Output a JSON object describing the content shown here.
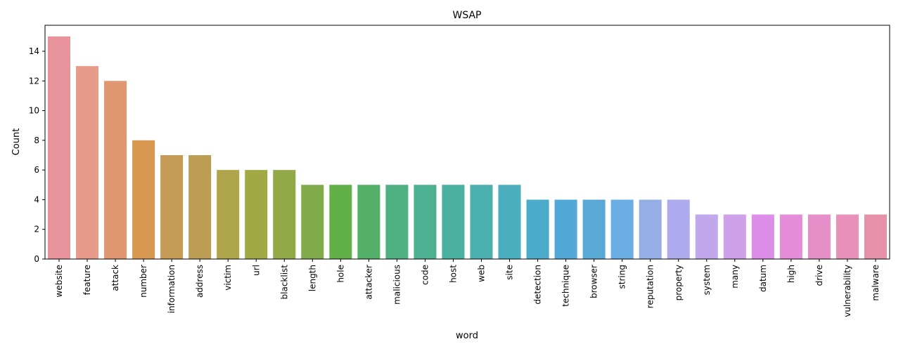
{
  "chart_data": {
    "type": "bar",
    "title": "WSAP",
    "xlabel": "word",
    "ylabel": "Count",
    "ylim": [
      0,
      15.75
    ],
    "yticks": [
      0,
      2,
      4,
      6,
      8,
      10,
      12,
      14
    ],
    "grid": false,
    "categories": [
      "website",
      "feature",
      "attack",
      "number",
      "information",
      "address",
      "victim",
      "url",
      "blacklist",
      "length",
      "hole",
      "attacker",
      "malicious",
      "code",
      "host",
      "web",
      "site",
      "detection",
      "technique",
      "browser",
      "string",
      "reputation",
      "property",
      "system",
      "many",
      "datum",
      "high",
      "drive",
      "vulnerability",
      "malware"
    ],
    "values": [
      15,
      13,
      12,
      8,
      7,
      7,
      6,
      6,
      6,
      5,
      5,
      5,
      5,
      5,
      5,
      5,
      5,
      4,
      4,
      4,
      4,
      4,
      4,
      3,
      3,
      3,
      3,
      3,
      3,
      3
    ],
    "colors": [
      "#e8929b",
      "#e89a8b",
      "#e09670",
      "#d99851",
      "#c69b55",
      "#bc9d53",
      "#aea54a",
      "#a1a946",
      "#93a846",
      "#81ab4a",
      "#62b048",
      "#55b16a",
      "#4fb182",
      "#4db191",
      "#4bb09f",
      "#4aafae",
      "#4aaebd",
      "#4cabcb",
      "#52a8d6",
      "#58a9d6",
      "#6aaee5",
      "#96aee6",
      "#aeaaee",
      "#c1a8ec",
      "#cfa1ea",
      "#dc8ee8",
      "#e68dda",
      "#e58ec8",
      "#e991bb",
      "#e690a9"
    ]
  }
}
